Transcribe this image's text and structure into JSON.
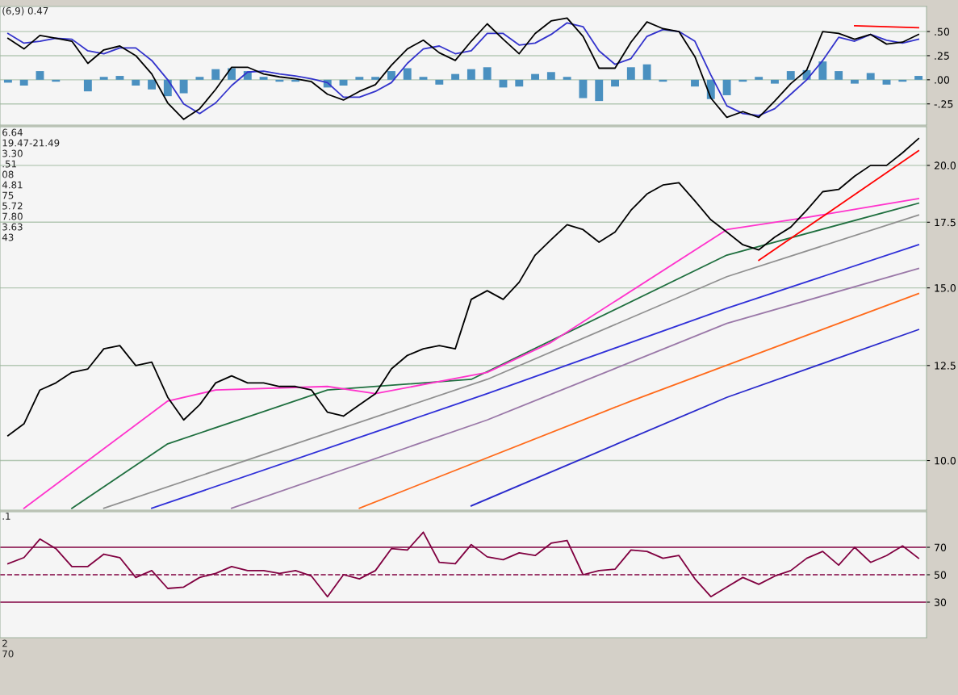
{
  "chart_data": [
    {
      "type": "line",
      "annotations": [
        "(6,9) 0.47"
      ],
      "categories": [
        null,
        null,
        null,
        null,
        null,
        null,
        null,
        null,
        null,
        null,
        null,
        null,
        null,
        null,
        null,
        null,
        null,
        null,
        null,
        null,
        null,
        null,
        null,
        null,
        null,
        null,
        null,
        null,
        null,
        null,
        null,
        null,
        null,
        null,
        null,
        null,
        null,
        null,
        null,
        null,
        null,
        null,
        null,
        null,
        null,
        null,
        null,
        null,
        null,
        null,
        null,
        null,
        null,
        null,
        null,
        null,
        null,
        null
      ],
      "ylim": [
        -0.47,
        0.76
      ],
      "yticks": [
        {
          "value": 0.5,
          "label": ".50"
        },
        {
          "value": 0.25,
          "label": ".25"
        },
        {
          "value": 0,
          "label": ".00"
        },
        {
          "value": -0.25,
          "label": "-.25"
        }
      ],
      "grid": "y",
      "tick_labels": "y",
      "series": [
        {
          "type": "bar",
          "color": "#4a90c0",
          "values": [
            -0.03,
            -0.06,
            0.09,
            -0.02,
            0,
            -0.12,
            0.03,
            0.04,
            -0.06,
            -0.1,
            -0.17,
            -0.14,
            0.03,
            0.11,
            0.12,
            0.09,
            0.03,
            -0.02,
            -0.02,
            0,
            -0.08,
            -0.06,
            0.03,
            0.03,
            0.09,
            0.12,
            0.03,
            -0.05,
            0.06,
            0.11,
            0.13,
            -0.08,
            -0.07,
            0.06,
            0.08,
            0.03,
            -0.19,
            -0.22,
            -0.07,
            0.13,
            0.16,
            -0.02,
            0,
            -0.07,
            -0.2,
            -0.16,
            -0.02,
            0.03,
            -0.04,
            0.09,
            0.1,
            0.19,
            0.09,
            -0.04,
            0.07,
            -0.05,
            -0.02,
            0.04
          ]
        },
        {
          "type": "line",
          "color": "#3333cc",
          "values": [
            0.48,
            0.38,
            0.4,
            0.43,
            0.42,
            0.3,
            0.27,
            0.33,
            0.33,
            0.2,
            0.0,
            -0.25,
            -0.35,
            -0.24,
            -0.06,
            0.08,
            0.09,
            0.06,
            0.04,
            0.01,
            -0.03,
            -0.18,
            -0.18,
            -0.12,
            -0.03,
            0.17,
            0.32,
            0.35,
            0.27,
            0.3,
            0.48,
            0.48,
            0.36,
            0.38,
            0.47,
            0.59,
            0.55,
            0.3,
            0.16,
            0.22,
            0.45,
            0.52,
            0.5,
            0.4,
            0.05,
            -0.27,
            -0.35,
            -0.37,
            -0.3,
            -0.15,
            0.0,
            0.2,
            0.44,
            0.4,
            0.47,
            0.41,
            0.38,
            0.42
          ]
        },
        {
          "type": "line",
          "color": "#000000",
          "values": [
            0.43,
            0.32,
            0.46,
            0.43,
            0.4,
            0.17,
            0.31,
            0.35,
            0.25,
            0.06,
            -0.24,
            -0.41,
            -0.3,
            -0.1,
            0.13,
            0.13,
            0.06,
            0.03,
            0.01,
            -0.02,
            -0.15,
            -0.21,
            -0.12,
            -0.05,
            0.15,
            0.32,
            0.41,
            0.28,
            0.2,
            0.4,
            0.58,
            0.42,
            0.27,
            0.48,
            0.61,
            0.64,
            0.45,
            0.12,
            0.12,
            0.39,
            0.6,
            0.53,
            0.5,
            0.24,
            -0.19,
            -0.39,
            -0.33,
            -0.39,
            -0.22,
            -0.04,
            0.1,
            0.5,
            0.48,
            0.42,
            0.47,
            0.37,
            0.39,
            0.47
          ]
        },
        {
          "type": "line",
          "color": "#ff0000",
          "values": [
            null,
            null,
            null,
            null,
            null,
            null,
            null,
            null,
            null,
            null,
            null,
            null,
            null,
            null,
            null,
            null,
            null,
            null,
            null,
            null,
            null,
            null,
            null,
            null,
            null,
            null,
            null,
            null,
            null,
            null,
            null,
            null,
            null,
            null,
            null,
            null,
            null,
            null,
            null,
            null,
            null,
            null,
            null,
            null,
            null,
            null,
            null,
            null,
            null,
            null,
            null,
            null,
            null,
            0.56,
            null,
            null,
            null,
            0.54
          ]
        }
      ]
    },
    {
      "type": "line",
      "log": true,
      "annotations": [
        "6.64",
        "19.47-21.49",
        "3.30",
        ".51",
        "08",
        "4.81",
        "75",
        "5.72",
        "7.80",
        "3.63",
        "43"
      ],
      "categories": [
        null,
        null,
        null,
        null,
        null,
        null,
        null,
        null,
        null,
        null,
        null,
        null,
        null,
        null,
        null,
        null,
        null,
        null,
        null,
        null,
        null,
        null,
        null,
        null,
        null,
        null,
        null,
        null,
        null,
        null,
        null,
        null,
        null,
        null,
        null,
        null,
        null,
        null,
        null,
        null,
        null,
        null,
        null,
        null,
        null,
        null,
        null,
        null,
        null,
        null,
        null,
        null,
        null,
        null,
        null,
        null,
        null,
        null
      ],
      "ylim": [
        8.9,
        21.9
      ],
      "yticks": [
        {
          "value": 20,
          "label": "20.0"
        },
        {
          "value": 17.5,
          "label": "17.5"
        },
        {
          "value": 15,
          "label": "15.0"
        },
        {
          "value": 12.5,
          "label": "12.5"
        },
        {
          "value": 10,
          "label": "10.0"
        }
      ],
      "grid": "y",
      "tick_labels": "y",
      "series": [
        {
          "color": "#2a2acc",
          "values": [
            null,
            null,
            null,
            null,
            null,
            null,
            null,
            null,
            null,
            null,
            null,
            null,
            null,
            null,
            null,
            null,
            null,
            null,
            null,
            null,
            null,
            null,
            null,
            null,
            null,
            null,
            null,
            null,
            null,
            8.99,
            null,
            null,
            null,
            null,
            null,
            null,
            null,
            null,
            null,
            null,
            null,
            null,
            null,
            null,
            null,
            11.6,
            null,
            null,
            null,
            null,
            null,
            null,
            null,
            null,
            null,
            null,
            null,
            13.6
          ]
        },
        {
          "color": "#ff6a1a",
          "values": [
            null,
            null,
            null,
            null,
            null,
            null,
            null,
            null,
            null,
            null,
            null,
            null,
            null,
            null,
            null,
            null,
            null,
            null,
            null,
            null,
            null,
            null,
            8.94,
            null,
            null,
            null,
            null,
            null,
            null,
            null,
            null,
            null,
            null,
            null,
            null,
            null,
            null,
            null,
            null,
            11.5,
            null,
            null,
            null,
            null,
            null,
            null,
            null,
            null,
            null,
            null,
            null,
            null,
            null,
            null,
            null,
            null,
            null,
            14.8
          ]
        },
        {
          "color": "#9a78a8",
          "values": [
            null,
            null,
            null,
            null,
            null,
            null,
            null,
            null,
            null,
            null,
            null,
            null,
            null,
            null,
            8.94,
            null,
            null,
            null,
            null,
            null,
            null,
            null,
            null,
            null,
            null,
            null,
            null,
            null,
            null,
            null,
            11.0,
            null,
            null,
            null,
            null,
            null,
            null,
            null,
            null,
            null,
            null,
            null,
            null,
            null,
            null,
            13.8,
            null,
            null,
            null,
            null,
            null,
            null,
            null,
            null,
            null,
            null,
            null,
            15.7
          ]
        },
        {
          "color": "#3030d8",
          "values": [
            null,
            null,
            null,
            null,
            null,
            null,
            null,
            null,
            null,
            8.94,
            null,
            null,
            null,
            null,
            null,
            null,
            null,
            null,
            null,
            null,
            null,
            null,
            null,
            null,
            null,
            null,
            null,
            null,
            null,
            null,
            11.7,
            null,
            null,
            null,
            null,
            null,
            null,
            null,
            null,
            null,
            null,
            null,
            null,
            null,
            null,
            14.3,
            null,
            null,
            null,
            null,
            null,
            null,
            null,
            null,
            null,
            null,
            null,
            16.6
          ]
        },
        {
          "color": "#909090",
          "values": [
            null,
            null,
            null,
            null,
            null,
            null,
            8.94,
            null,
            null,
            null,
            null,
            null,
            null,
            null,
            null,
            null,
            null,
            null,
            null,
            null,
            null,
            null,
            null,
            null,
            null,
            null,
            null,
            null,
            null,
            null,
            12.1,
            null,
            null,
            null,
            null,
            null,
            null,
            null,
            null,
            null,
            null,
            null,
            null,
            null,
            null,
            15.4,
            null,
            null,
            null,
            null,
            null,
            null,
            null,
            null,
            null,
            null,
            null,
            17.8
          ]
        },
        {
          "color": "#1f6f3f",
          "values": [
            null,
            null,
            null,
            null,
            8.94,
            null,
            null,
            null,
            null,
            null,
            10.4,
            null,
            null,
            null,
            null,
            null,
            null,
            null,
            null,
            null,
            11.8,
            null,
            null,
            null,
            null,
            null,
            null,
            null,
            null,
            12.1,
            null,
            null,
            null,
            null,
            null,
            null,
            null,
            null,
            null,
            null,
            null,
            null,
            null,
            null,
            null,
            16.2,
            null,
            null,
            null,
            null,
            null,
            null,
            null,
            null,
            null,
            null,
            null,
            18.3
          ]
        },
        {
          "color": "#ff33cc",
          "values": [
            null,
            8.94,
            null,
            null,
            null,
            null,
            null,
            null,
            null,
            null,
            11.5,
            null,
            null,
            11.8,
            null,
            null,
            null,
            null,
            null,
            null,
            11.9,
            null,
            null,
            11.7,
            null,
            null,
            null,
            null,
            null,
            null,
            12.3,
            null,
            null,
            null,
            13.2,
            null,
            null,
            null,
            null,
            null,
            null,
            null,
            null,
            null,
            null,
            17.2,
            null,
            null,
            null,
            null,
            17.7,
            null,
            null,
            null,
            null,
            null,
            null,
            18.5
          ]
        },
        {
          "color": "#000000",
          "values": [
            10.6,
            10.9,
            11.8,
            12.0,
            12.3,
            12.4,
            13.0,
            13.1,
            12.5,
            12.6,
            11.6,
            11.0,
            11.4,
            12.0,
            12.2,
            12.0,
            12.0,
            11.9,
            11.9,
            11.8,
            11.2,
            11.1,
            11.4,
            11.7,
            12.4,
            12.8,
            13.0,
            13.1,
            13.0,
            14.6,
            14.9,
            14.6,
            15.2,
            16.2,
            16.8,
            17.4,
            17.2,
            16.7,
            17.1,
            18.0,
            18.7,
            19.1,
            19.2,
            18.4,
            17.6,
            17.1,
            16.6,
            16.4,
            16.9,
            17.3,
            18.0,
            18.8,
            18.9,
            19.5,
            20.0,
            20.0,
            20.6,
            21.3
          ]
        },
        {
          "color": "#ff0000",
          "values": [
            null,
            null,
            null,
            null,
            null,
            null,
            null,
            null,
            null,
            null,
            null,
            null,
            null,
            null,
            null,
            null,
            null,
            null,
            null,
            null,
            null,
            null,
            null,
            null,
            null,
            null,
            null,
            null,
            null,
            null,
            null,
            null,
            null,
            null,
            null,
            null,
            null,
            null,
            null,
            null,
            null,
            null,
            null,
            null,
            null,
            null,
            null,
            16.0,
            null,
            null,
            null,
            null,
            null,
            null,
            null,
            null,
            null,
            20.7
          ]
        }
      ]
    },
    {
      "type": "line",
      "annotations": [
        ".1"
      ],
      "categories": [
        null,
        null,
        null,
        null,
        null,
        null,
        null,
        null,
        null,
        null,
        null,
        null,
        null,
        null,
        null,
        null,
        null,
        null,
        null,
        null,
        null,
        null,
        null,
        null,
        null,
        null,
        null,
        null,
        null,
        null,
        null,
        null,
        null,
        null,
        null,
        null,
        null,
        null,
        null,
        null,
        null,
        null,
        null,
        null,
        null,
        null,
        null,
        null,
        null,
        null,
        null,
        null,
        null,
        null,
        null,
        null,
        null,
        null
      ],
      "ylim": [
        4.1,
        95.9
      ],
      "yticks": [
        70,
        50,
        30
      ],
      "tick_labels": "y",
      "ref_lines": [
        {
          "axis": "y",
          "value": 70,
          "color": "#800040",
          "line_style": "solid"
        },
        {
          "axis": "y",
          "value": 50,
          "color": "#800040",
          "line_style": "dashed"
        },
        {
          "axis": "y",
          "value": 30,
          "color": "#800040",
          "line_style": "solid"
        }
      ],
      "series": [
        {
          "color": "#800040",
          "values": [
            58,
            62.5,
            76,
            69,
            56,
            56,
            65,
            62.5,
            48,
            53,
            40,
            41,
            48,
            51,
            56,
            53,
            53,
            51,
            53,
            49,
            34,
            50,
            47,
            53,
            69,
            68,
            81,
            59,
            58,
            72,
            63,
            61,
            66,
            64,
            73,
            75,
            50,
            53,
            54,
            68,
            67,
            62,
            64,
            47,
            34,
            41,
            48,
            43,
            49,
            53,
            62,
            67,
            57,
            70,
            59,
            64,
            71,
            62
          ]
        }
      ]
    },
    {
      "type": "other",
      "annotations": [
        "2",
        "70"
      ]
    }
  ]
}
